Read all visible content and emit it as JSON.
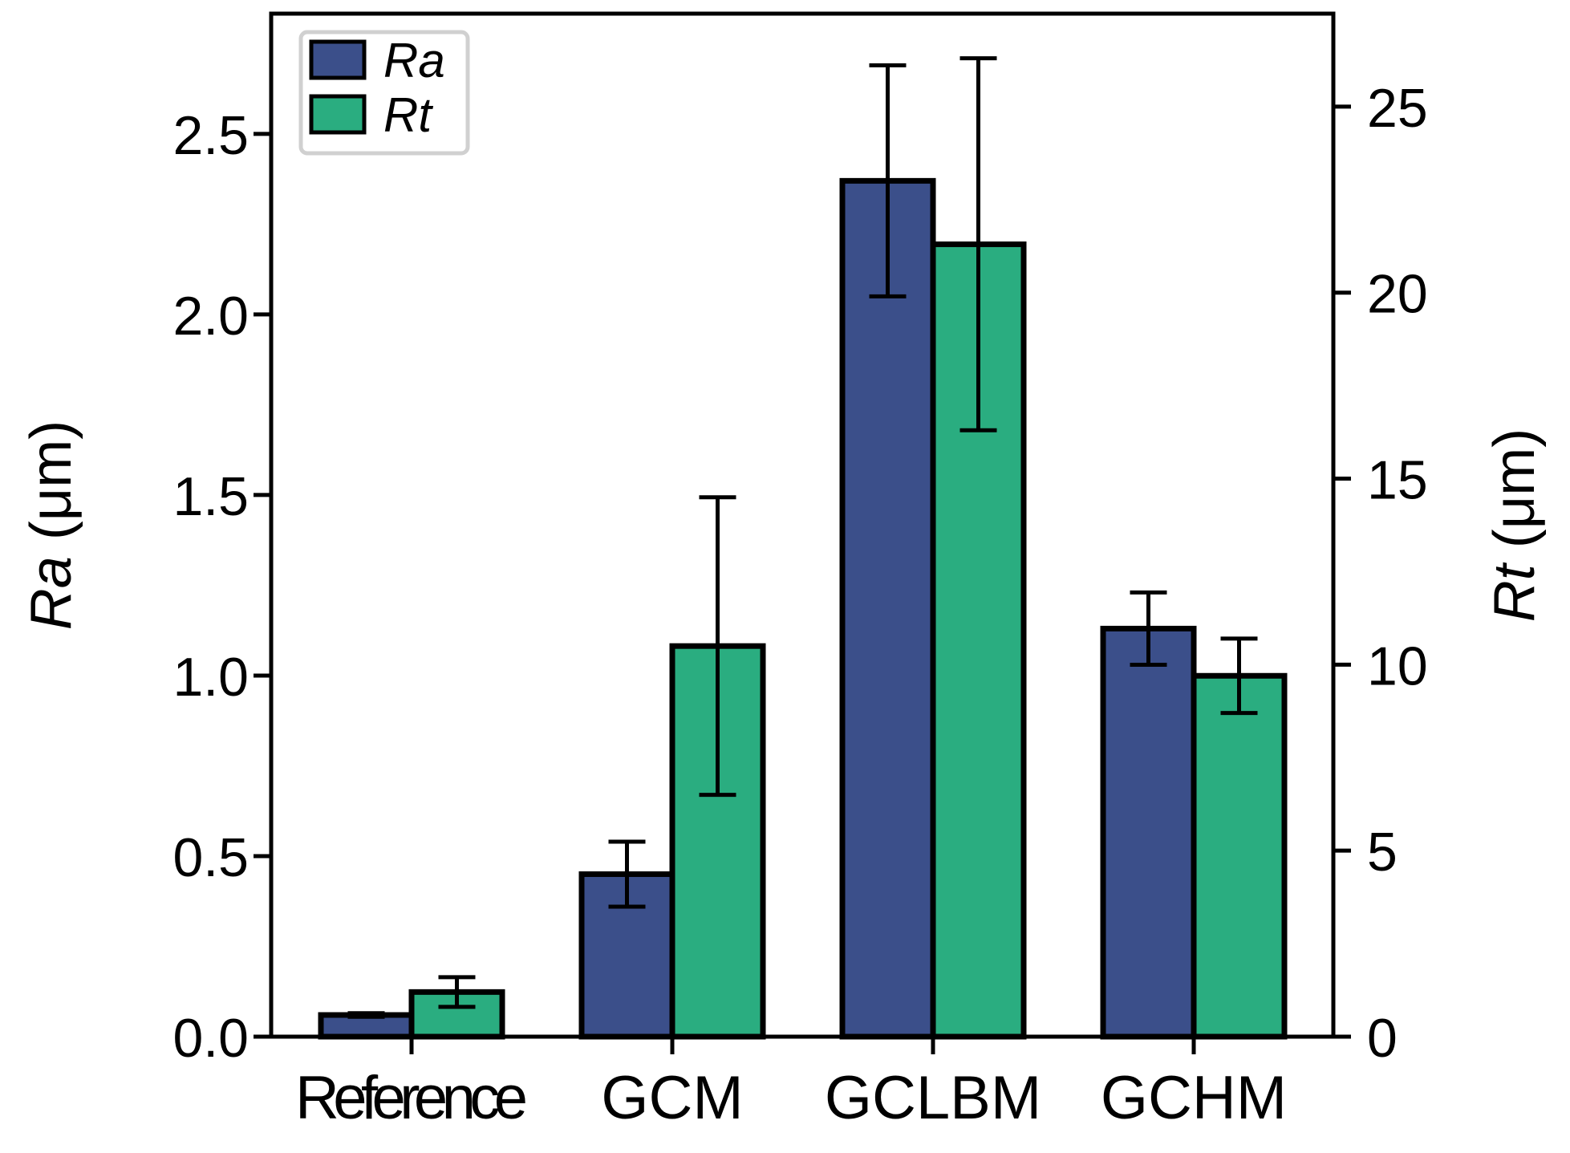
{
  "chart_data": {
    "type": "bar",
    "categories": [
      "Reference",
      "GCM",
      "GCLBM",
      "GCHM"
    ],
    "series": [
      {
        "name": "Ra",
        "axis": "left",
        "color": "#3b4f8a",
        "values": [
          0.06,
          0.45,
          2.37,
          1.13
        ],
        "errors": [
          0.005,
          0.09,
          0.32,
          0.1
        ]
      },
      {
        "name": "Rt",
        "axis": "right",
        "color": "#2aad80",
        "values": [
          1.2,
          10.5,
          21.3,
          9.7
        ],
        "errors": [
          0.4,
          4.0,
          5.0,
          1.0
        ]
      }
    ],
    "left_axis": {
      "label_italic": "Ra",
      "label_rest": " (μm)",
      "ylim": [
        0,
        2.833
      ],
      "ticks": [
        "0.0",
        "0.5",
        "1.0",
        "1.5",
        "2.0",
        "2.5"
      ]
    },
    "right_axis": {
      "label_italic": "Rt",
      "label_rest": " (μm)",
      "ylim": [
        0,
        27.5
      ],
      "ticks": [
        "0",
        "5",
        "10",
        "15",
        "20",
        "25"
      ]
    },
    "legend": {
      "position": "top-left",
      "entries": [
        "Ra",
        "Rt"
      ]
    },
    "grid": false
  }
}
